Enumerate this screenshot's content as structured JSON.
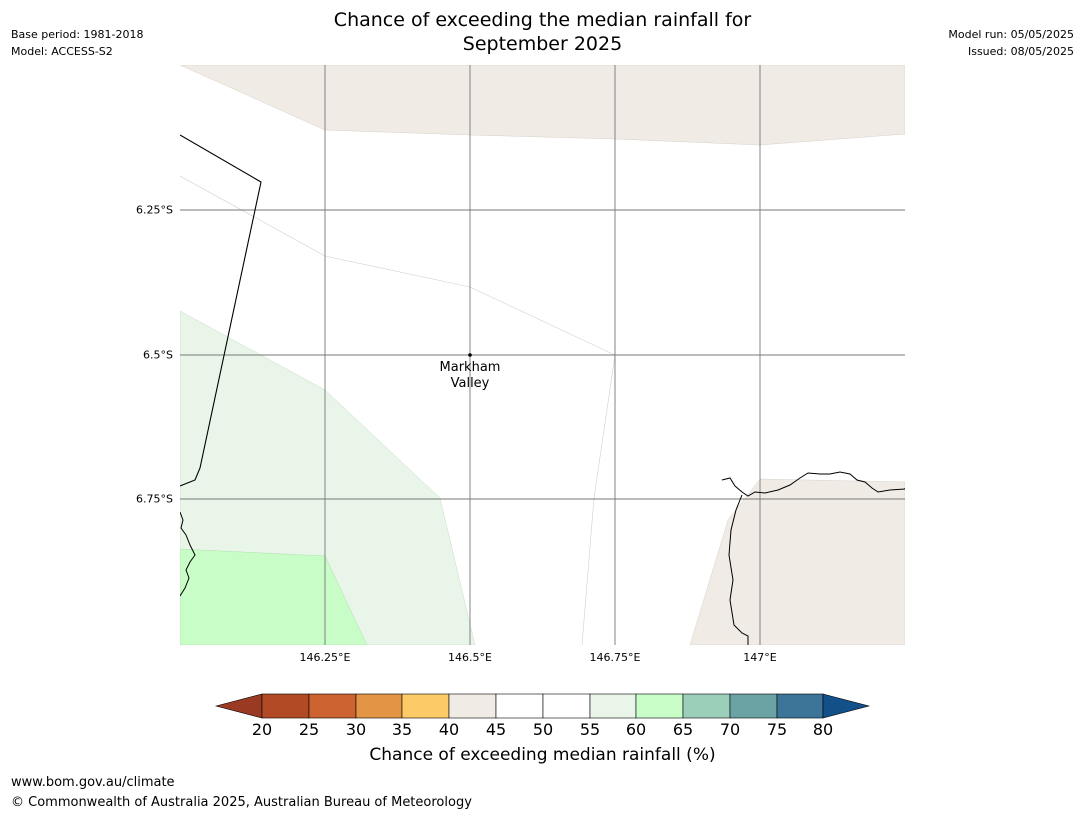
{
  "meta": {
    "base_period": "Base period: 1981-2018",
    "model": "Model: ACCESS-S2",
    "model_run": "Model run: 05/05/2025",
    "issued": "Issued: 08/05/2025"
  },
  "title": {
    "line1": "Chance of exceeding the median rainfall for",
    "line2": "September 2025"
  },
  "axes": {
    "y_labels": [
      "6.25°S",
      "6.5°S",
      "6.75°S"
    ],
    "x_labels": [
      "146.25°E",
      "146.5°E",
      "146.75°E",
      "147°E"
    ]
  },
  "places": [
    {
      "name_line1": "Markham",
      "name_line2": "Valley"
    }
  ],
  "colorbar": {
    "label": "Chance of exceeding median rainfall (%)",
    "ticks": [
      "20",
      "25",
      "30",
      "35",
      "40",
      "45",
      "50",
      "55",
      "60",
      "65",
      "70",
      "75",
      "80"
    ],
    "colors": {
      "below_20": "#9b3a22",
      "20_25": "#b24a25",
      "25_30": "#cc6331",
      "30_35": "#e39545",
      "35_40": "#fcca66",
      "40_45": "#f0ebe5",
      "45_50": "#ffffff",
      "50_55": "#ffffff",
      "55_60": "#e9f5e9",
      "60_65": "#c8fdc8",
      "65_70": "#9ccfb9",
      "70_75": "#6ba3a5",
      "75_80": "#3d7598",
      "above_80": "#134f89"
    }
  },
  "footer": {
    "url": "www.bom.gov.au/climate",
    "copyright": "© Commonwealth of Australia 2025, Australian Bureau of Meteorology"
  }
}
